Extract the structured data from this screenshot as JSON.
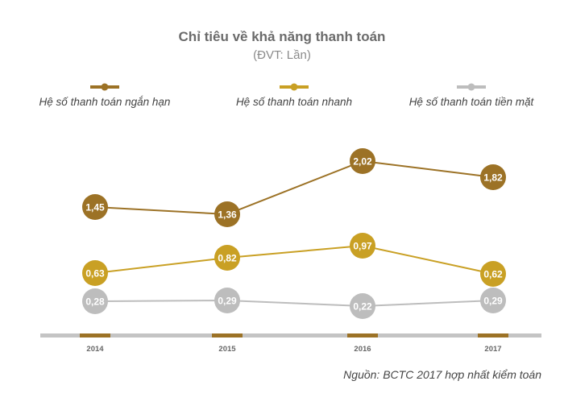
{
  "chart_data": {
    "type": "line",
    "title": "Chỉ tiêu về khả năng thanh toán",
    "subtitle": "(ĐVT: Lần)",
    "categories": [
      "2014",
      "2015",
      "2016",
      "2017"
    ],
    "series": [
      {
        "name": "Hệ số thanh toán ngắn hạn",
        "values": [
          1.45,
          1.36,
          2.02,
          1.82
        ],
        "labels": [
          "1,45",
          "1,36",
          "2,02",
          "1,82"
        ],
        "color": "#9c7226"
      },
      {
        "name": "Hệ số thanh toán nhanh",
        "values": [
          0.63,
          0.82,
          0.97,
          0.62
        ],
        "labels": [
          "0,63",
          "0,82",
          "0,97",
          "0,62"
        ],
        "color": "#c9a024"
      },
      {
        "name": "Hệ số thanh toán tiền mặt",
        "values": [
          0.28,
          0.29,
          0.22,
          0.29
        ],
        "labels": [
          "0,28",
          "0,29",
          "0,22",
          "0,29"
        ],
        "color": "#bdbdbd"
      }
    ],
    "legend_position": "top",
    "grid": false,
    "axis_color": "#c4c4c4",
    "tick_color": "#9c7226",
    "source": "Nguồn: BCTC 2017 hợp nhất kiểm toán"
  }
}
